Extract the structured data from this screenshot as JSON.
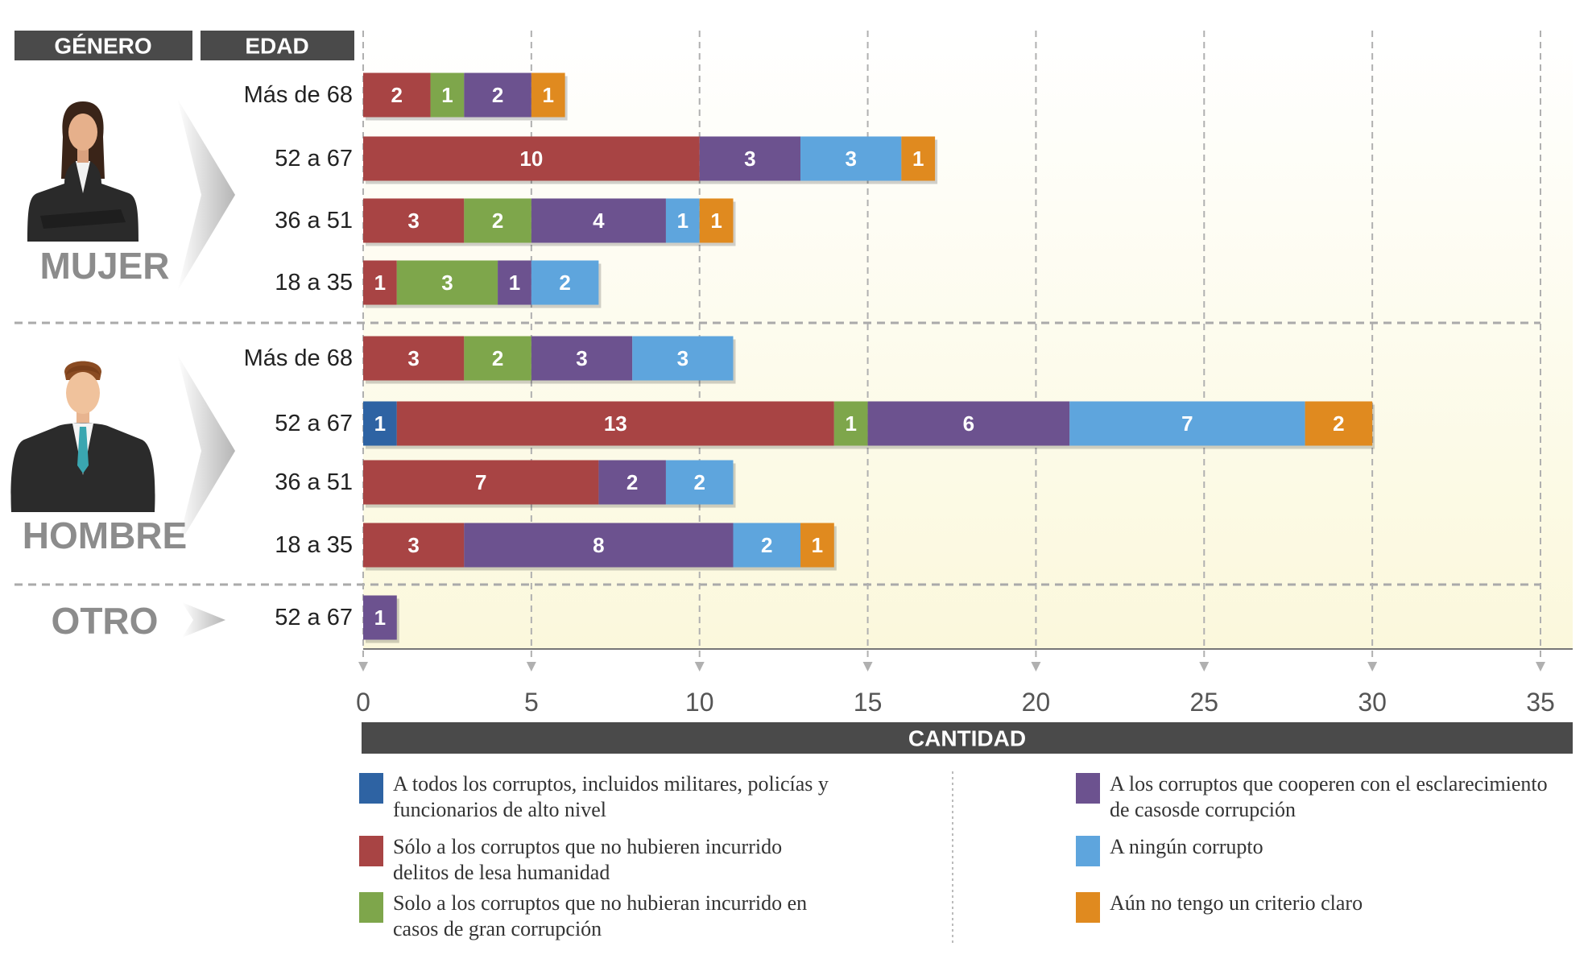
{
  "chart_data": {
    "type": "stacked-bar-horizontal",
    "headers": [
      "GÉNERO",
      "EDAD"
    ],
    "groups": [
      "MUJER",
      "HOMBRE",
      "OTRO"
    ],
    "categories": [
      "Más de 68",
      "52 a 67",
      "36 a 51",
      "18 a 35",
      "Más de 68",
      "52 a 67",
      "36 a 51",
      "18 a 35",
      "52 a 67"
    ],
    "series": [
      {
        "name": "A todos los corruptos, incluidos militares, policías y funcionarios de alto nivel",
        "color": "#2e63a3",
        "values": [
          null,
          null,
          null,
          null,
          null,
          1,
          null,
          null,
          null
        ]
      },
      {
        "name": "Sólo a los corruptos que no hubieren incurrido delitos de lesa humanidad",
        "color": "#a84444",
        "values": [
          2,
          10,
          3,
          1,
          3,
          13,
          7,
          3,
          null
        ]
      },
      {
        "name": "Solo a los corruptos que no hubieran incurrido en casos de gran corrupción",
        "color": "#7ea64b",
        "values": [
          1,
          null,
          2,
          3,
          2,
          1,
          null,
          null,
          null
        ]
      },
      {
        "name": "A los corruptos que cooperen con el esclarecimiento de casosde corrupción",
        "color": "#6c528f",
        "values": [
          2,
          3,
          4,
          1,
          3,
          6,
          2,
          8,
          1
        ]
      },
      {
        "name": "A ningún corrupto",
        "color": "#5ea5dd",
        "values": [
          null,
          3,
          1,
          2,
          3,
          7,
          2,
          2,
          null
        ]
      },
      {
        "name": "Aún no tengo un criterio claro",
        "color": "#e08a1f",
        "values": [
          1,
          1,
          1,
          null,
          null,
          2,
          null,
          1,
          null
        ]
      }
    ],
    "xlabel": "CANTIDAD",
    "xlim": [
      0,
      35
    ],
    "xticks": [
      0,
      5,
      10,
      15,
      20,
      25,
      30,
      35
    ],
    "grid": true
  }
}
